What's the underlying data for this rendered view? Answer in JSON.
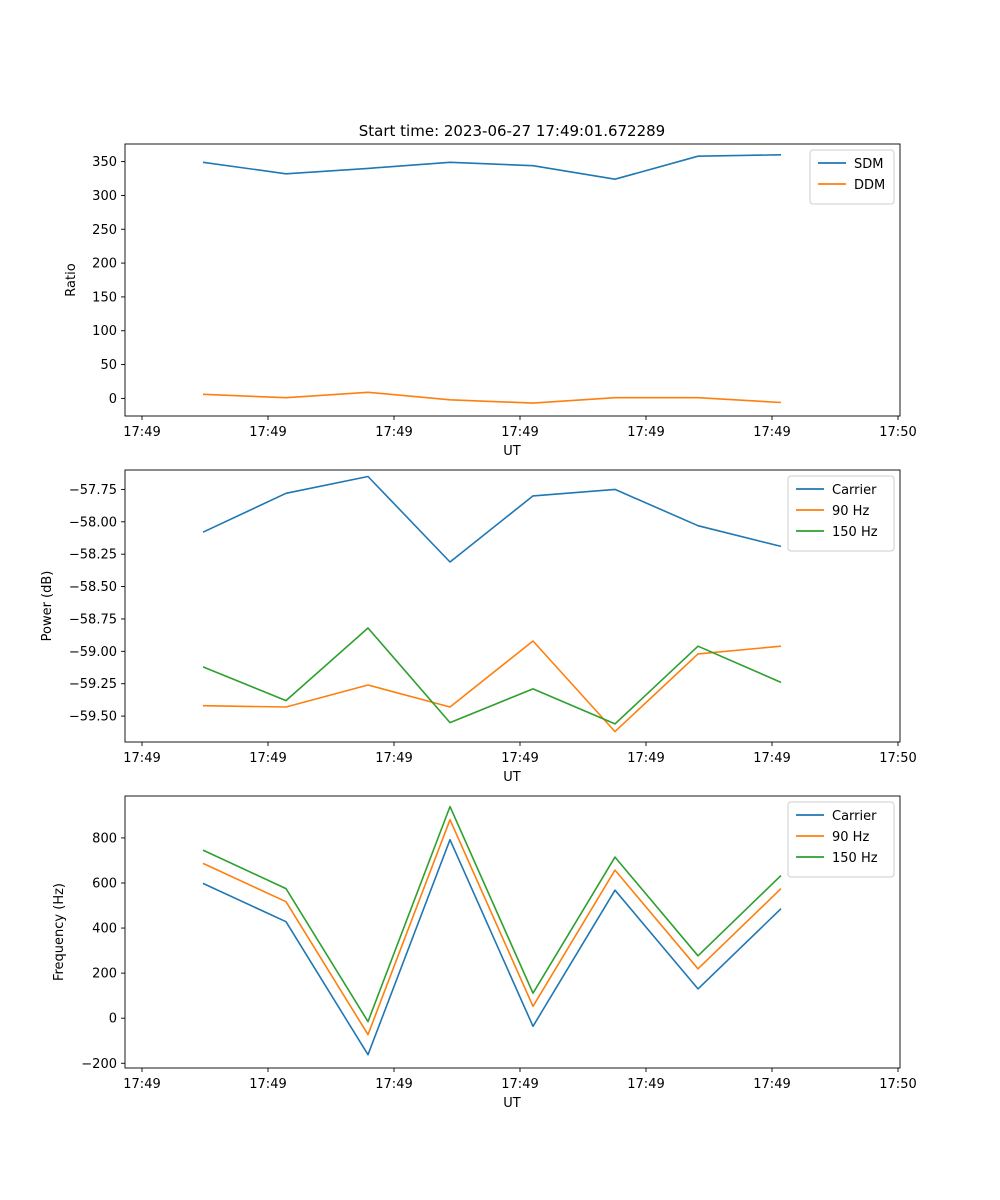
{
  "figure": {
    "title": "Start time: 2023-06-27 17:49:01.672289"
  },
  "colors": {
    "blue": "#1f77b4",
    "orange": "#ff7f0e",
    "green": "#2ca02c"
  },
  "chart_data": [
    {
      "type": "line",
      "title": "Start time: 2023-06-27 17:49:01.672289",
      "xlabel": "UT",
      "ylabel": "Ratio",
      "x_tick_labels": [
        "17:49",
        "17:49",
        "17:49",
        "17:49",
        "17:49",
        "17:49",
        "17:49",
        "17:50"
      ],
      "y_ticks": [
        0,
        50,
        100,
        150,
        200,
        250,
        300,
        350
      ],
      "y_tick_labels": [
        "0",
        "50",
        "100",
        "150",
        "200",
        "250",
        "300",
        "350"
      ],
      "ylim": [
        -26,
        376
      ],
      "grid": false,
      "legend": "upper-right",
      "series": [
        {
          "name": "SDM",
          "color": "#1f77b4",
          "values": [
            349,
            332,
            340,
            349,
            344,
            324,
            358,
            360
          ]
        },
        {
          "name": "DDM",
          "color": "#ff7f0e",
          "values": [
            6,
            1,
            9,
            -2,
            -7,
            1,
            1,
            -6
          ]
        }
      ]
    },
    {
      "type": "line",
      "title": "",
      "xlabel": "UT",
      "ylabel": "Power (dB)",
      "x_tick_labels": [
        "17:49",
        "17:49",
        "17:49",
        "17:49",
        "17:49",
        "17:49",
        "17:49",
        "17:50"
      ],
      "y_ticks": [
        -59.5,
        -59.25,
        -59.0,
        -58.75,
        -58.5,
        -58.25,
        -58.0,
        -57.75
      ],
      "y_tick_labels": [
        "−59.50",
        "−59.25",
        "−59.00",
        "−58.75",
        "−58.50",
        "−58.25",
        "−58.00",
        "−57.75"
      ],
      "ylim": [
        -59.7,
        -57.6
      ],
      "grid": false,
      "legend": "upper-right",
      "series": [
        {
          "name": "Carrier",
          "color": "#1f77b4",
          "values": [
            -58.08,
            -57.78,
            -57.65,
            -58.31,
            -57.8,
            -57.75,
            -58.03,
            -58.19
          ]
        },
        {
          "name": "90 Hz",
          "color": "#ff7f0e",
          "values": [
            -59.42,
            -59.43,
            -59.26,
            -59.43,
            -58.92,
            -59.62,
            -59.02,
            -58.96
          ]
        },
        {
          "name": "150 Hz",
          "color": "#2ca02c",
          "values": [
            -59.12,
            -59.38,
            -58.82,
            -59.55,
            -59.29,
            -59.56,
            -58.96,
            -59.24
          ]
        }
      ]
    },
    {
      "type": "line",
      "title": "",
      "xlabel": "UT",
      "ylabel": "Frequency (Hz)",
      "x_tick_labels": [
        "17:49",
        "17:49",
        "17:49",
        "17:49",
        "17:49",
        "17:49",
        "17:49",
        "17:50"
      ],
      "y_ticks": [
        -200,
        0,
        200,
        400,
        600,
        800
      ],
      "y_tick_labels": [
        "−200",
        "0",
        "200",
        "400",
        "600",
        "800"
      ],
      "ylim": [
        -221,
        986
      ],
      "grid": false,
      "legend": "upper-right",
      "series": [
        {
          "name": "Carrier",
          "color": "#1f77b4",
          "values": [
            598,
            428,
            -162,
            792,
            -36,
            568,
            130,
            486
          ]
        },
        {
          "name": "90 Hz",
          "color": "#ff7f0e",
          "values": [
            687,
            517,
            -73,
            881,
            53,
            657,
            219,
            575
          ]
        },
        {
          "name": "150 Hz",
          "color": "#2ca02c",
          "values": [
            746,
            575,
            -15,
            939,
            111,
            715,
            277,
            633
          ]
        }
      ]
    }
  ]
}
